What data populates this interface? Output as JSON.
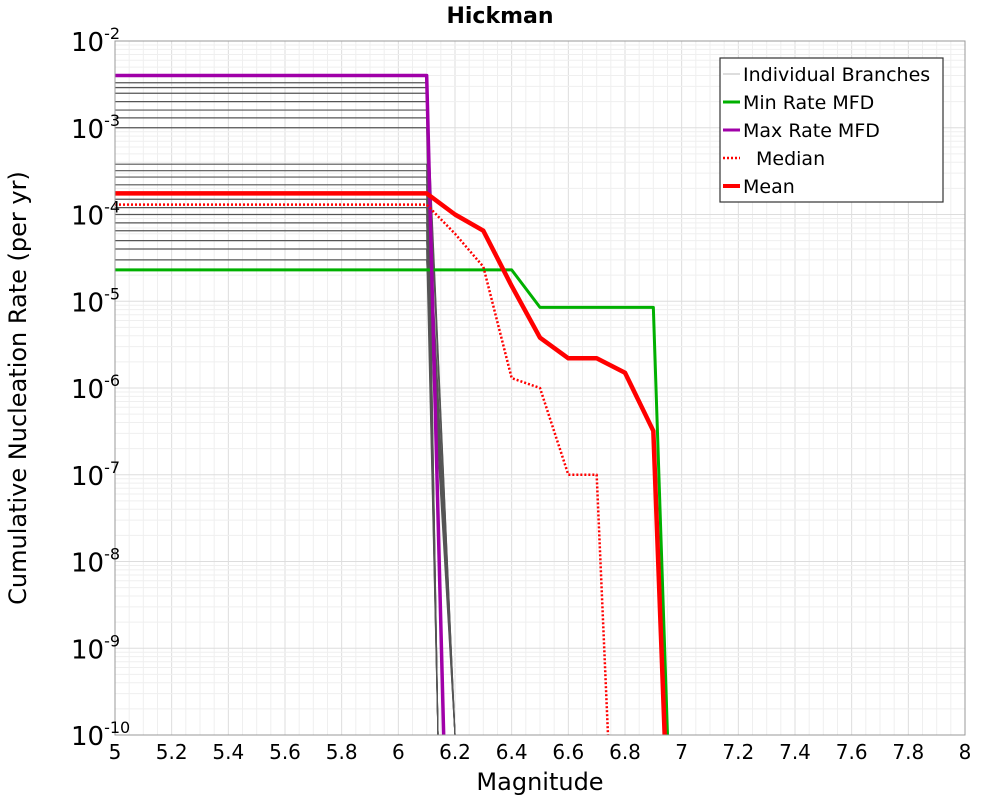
{
  "chart_data": {
    "type": "line",
    "title": "Hickman",
    "xlabel": "Magnitude",
    "ylabel": "Cumulative Nucleation Rate (per yr)",
    "xlim": [
      5,
      8
    ],
    "ylim": [
      1e-10,
      0.01
    ],
    "yscale": "log",
    "grid": true,
    "legend_position": "top-right",
    "x_ticks": [
      "5",
      "5.2",
      "5.4",
      "5.6",
      "5.8",
      "6",
      "6.2",
      "6.4",
      "6.6",
      "6.8",
      "7",
      "7.2",
      "7.4",
      "7.6",
      "7.8",
      "8"
    ],
    "y_ticks": [
      {
        "base": "10",
        "exp": "-10",
        "value": 1e-10
      },
      {
        "base": "10",
        "exp": "-9",
        "value": 1e-09
      },
      {
        "base": "10",
        "exp": "-8",
        "value": 1e-08
      },
      {
        "base": "10",
        "exp": "-7",
        "value": 1e-07
      },
      {
        "base": "10",
        "exp": "-6",
        "value": 1e-06
      },
      {
        "base": "10",
        "exp": "-5",
        "value": 1e-05
      },
      {
        "base": "10",
        "exp": "-4",
        "value": 0.0001
      },
      {
        "base": "10",
        "exp": "-3",
        "value": 0.001
      },
      {
        "base": "10",
        "exp": "-2",
        "value": 0.01
      }
    ],
    "legend": [
      {
        "label": "Individual Branches",
        "color": "#bbbbbb",
        "style": "solid-thin"
      },
      {
        "label": "Min Rate MFD",
        "color": "#00b000",
        "style": "solid"
      },
      {
        "label": "Max Rate MFD",
        "color": "#a000a8",
        "style": "solid"
      },
      {
        "label": "Median",
        "color": "#ff0000",
        "style": "dotted"
      },
      {
        "label": "Mean",
        "color": "#ff0000",
        "style": "solid-thick"
      }
    ],
    "series": [
      {
        "name": "Min Rate MFD",
        "color": "#00b000",
        "width": 3,
        "dash": "",
        "x": [
          5.0,
          6.1,
          6.3,
          6.4,
          6.5,
          6.6,
          6.7,
          6.8,
          6.9,
          6.95
        ],
        "y": [
          2.3e-05,
          2.3e-05,
          2.3e-05,
          2.3e-05,
          8.5e-06,
          8.5e-06,
          8.5e-06,
          8.5e-06,
          8.5e-06,
          1e-10
        ]
      },
      {
        "name": "Max Rate MFD",
        "color": "#a000a8",
        "width": 3.5,
        "dash": "",
        "x": [
          5.0,
          6.1,
          6.16
        ],
        "y": [
          0.004,
          0.004,
          1e-10
        ]
      },
      {
        "name": "Median",
        "color": "#ff0000",
        "width": 2.5,
        "dash": "2,2",
        "x": [
          5.0,
          6.1,
          6.2,
          6.3,
          6.4,
          6.5,
          6.6,
          6.7,
          6.74
        ],
        "y": [
          0.00013,
          0.00013,
          6e-05,
          2.5e-05,
          1.3e-06,
          1e-06,
          1e-07,
          1e-07,
          1e-10
        ]
      },
      {
        "name": "Mean",
        "color": "#ff0000",
        "width": 4.5,
        "dash": "",
        "x": [
          5.0,
          6.1,
          6.2,
          6.3,
          6.4,
          6.5,
          6.6,
          6.7,
          6.8,
          6.9,
          6.94
        ],
        "y": [
          0.000175,
          0.000175,
          0.0001,
          6.5e-05,
          1.5e-05,
          3.8e-06,
          2.2e-06,
          2.2e-06,
          1.5e-06,
          3.2e-07,
          1e-10
        ]
      }
    ],
    "branch_bundles": [
      {
        "y0": 0.0033,
        "x_end": 6.14,
        "drops": [
          1e-10
        ]
      },
      {
        "y0": 0.0029,
        "x_end": 6.14,
        "drops": [
          1e-10
        ]
      },
      {
        "y0": 0.0025,
        "x_end": 6.2,
        "drops": [
          1e-10
        ]
      },
      {
        "y0": 0.002,
        "x_end": 6.2,
        "drops": [
          1e-10
        ]
      },
      {
        "y0": 0.0016,
        "x_end": 6.14,
        "drops": [
          1e-10
        ]
      },
      {
        "y0": 0.0013,
        "x_end": 6.2,
        "drops": [
          1e-10
        ]
      },
      {
        "y0": 0.001,
        "x_end": 6.14,
        "drops": [
          1e-10
        ]
      },
      {
        "y0": 0.00038,
        "x_end": 6.2,
        "drops": [
          1e-10
        ]
      },
      {
        "y0": 0.00032,
        "x_end": 6.14,
        "drops": [
          1e-10
        ]
      },
      {
        "y0": 0.00027,
        "x_end": 6.2,
        "drops": [
          1e-10
        ]
      },
      {
        "y0": 0.00022,
        "x_end": 6.14,
        "drops": [
          1e-10
        ]
      },
      {
        "y0": 0.00018,
        "x_end": 6.2,
        "drops": [
          1e-10
        ]
      },
      {
        "y0": 0.00015,
        "x_end": 6.14,
        "drops": [
          1e-10
        ]
      },
      {
        "y0": 0.00012,
        "x_end": 6.2,
        "drops": [
          1e-10
        ]
      },
      {
        "y0": 0.0001,
        "x_end": 6.14,
        "drops": [
          1e-10
        ]
      },
      {
        "y0": 8e-05,
        "x_end": 6.2,
        "drops": [
          1e-10
        ]
      },
      {
        "y0": 6.5e-05,
        "x_end": 6.14,
        "drops": [
          1e-10
        ]
      },
      {
        "y0": 5e-05,
        "x_end": 6.2,
        "drops": [
          1e-10
        ]
      },
      {
        "y0": 4e-05,
        "x_end": 6.14,
        "drops": [
          1e-10
        ]
      },
      {
        "y0": 3e-05,
        "x_end": 6.2,
        "drops": [
          1e-10
        ]
      }
    ]
  }
}
